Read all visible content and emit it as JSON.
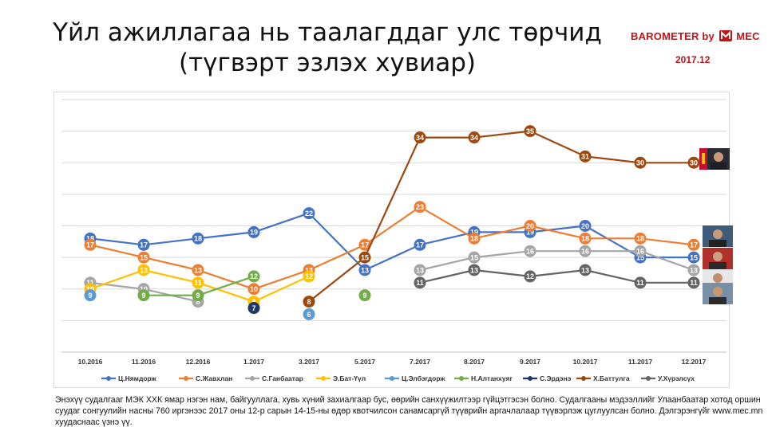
{
  "title": "Үйл ажиллагаа нь таалагддаг улс төрчид (түгвэрт эзлэх хувиар)",
  "brand": {
    "name_a": "BAROMETER by",
    "name_b": "MEC",
    "date": "2017.12"
  },
  "footnote": "Энэхүү судалгааг МЭК ХХК ямар нэгэн нам, байгууллага, хувь хүний захиалгаар бус, өөрийн санхүүжилтээр гүйцэтгэсэн болно. Судалгааны мэдээллийг Улаанбаатар хотод оршин суудаг сонгуулийн насны 760 иргэнээс 2017 оны 12-р сарын 14-15-ны өдөр квотчилсон санамсаргүй түүврийн аргачлалаар түүвэрлэж цуглуулсан болно. Дэлгэрэнгүйг www.mec.mn хуудаснаас үзнэ үү.",
  "colors": {
    "brand": "#c0141a",
    "grid": "#d9d9d9",
    "axis": "#bfbfbf"
  },
  "chart_data": {
    "type": "line",
    "categories": [
      "10.2016",
      "11.2016",
      "12.2016",
      "1.2017",
      "3.2017",
      "5.2017",
      "7.2017",
      "8.2017",
      "9.2017",
      "10.2017",
      "11.2017",
      "12.2017"
    ],
    "ylim": [
      0,
      40
    ],
    "grid": true,
    "legend_position": "bottom",
    "series": [
      {
        "name": "Ц.Нямдорж",
        "color": "#4472c4",
        "values": [
          18,
          17,
          18,
          19,
          22,
          13,
          17,
          19,
          19,
          20,
          15,
          15
        ]
      },
      {
        "name": "С.Жавхлан",
        "color": "#ed7d31",
        "values": [
          17,
          15,
          13,
          10,
          13,
          17,
          23,
          18,
          20,
          18,
          18,
          17
        ]
      },
      {
        "name": "С.Ганбаатар",
        "color": "#a5a5a5",
        "values": [
          11,
          10,
          8,
          null,
          null,
          null,
          13,
          15,
          16,
          16,
          16,
          13
        ]
      },
      {
        "name": "Э.Бат-Үүл",
        "color": "#ffc000",
        "values": [
          10,
          13,
          11,
          8,
          12,
          null,
          null,
          null,
          null,
          null,
          null,
          null
        ]
      },
      {
        "name": "Ц.Элбэгдорж",
        "color": "#5b9bd5",
        "values": [
          9,
          null,
          null,
          null,
          6,
          null,
          null,
          null,
          null,
          null,
          null,
          null
        ]
      },
      {
        "name": "Н.Алтанхуяг",
        "color": "#70ad47",
        "values": [
          null,
          9,
          9,
          12,
          null,
          9,
          null,
          null,
          null,
          null,
          null,
          null
        ]
      },
      {
        "name": "С.Эрдэнэ",
        "color": "#203864",
        "values": [
          null,
          null,
          null,
          7,
          null,
          null,
          null,
          null,
          null,
          null,
          null,
          null
        ]
      },
      {
        "name": "Х.Баттулга",
        "color": "#9e480e",
        "values": [
          null,
          null,
          null,
          null,
          8,
          15,
          34,
          34,
          35,
          31,
          30,
          30
        ]
      },
      {
        "name": "У.Хүрэлсүх",
        "color": "#636363",
        "values": [
          null,
          null,
          null,
          null,
          null,
          null,
          11,
          13,
          12,
          13,
          11,
          11
        ]
      }
    ]
  }
}
